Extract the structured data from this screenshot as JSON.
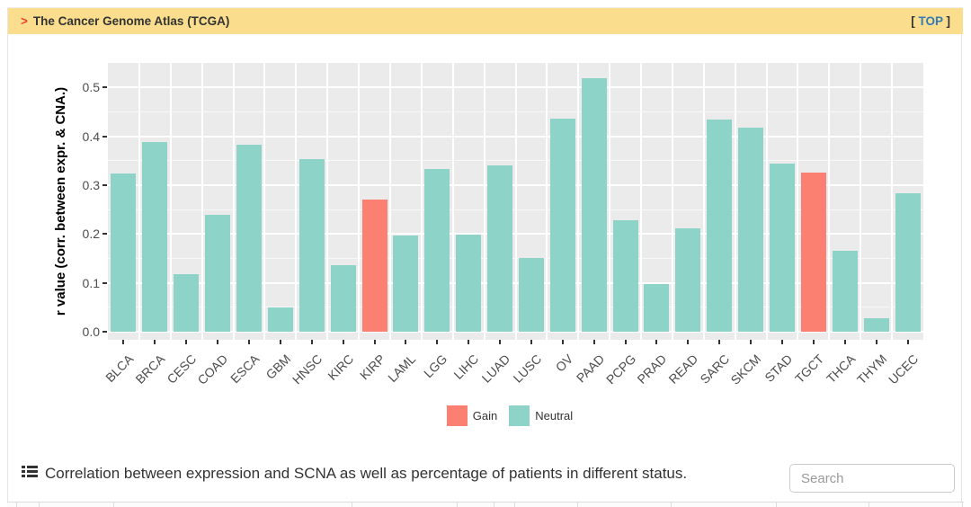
{
  "header": {
    "arrow": ">",
    "title": "The Cancer Genome Atlas (TCGA)",
    "top": {
      "prefix": "[ ",
      "label": "TOP",
      "suffix": " ]"
    }
  },
  "chart_data": {
    "type": "bar",
    "title": "",
    "xlabel": "",
    "ylabel": "r value (corr. between expr. & CNA.)",
    "ylim": [
      0,
      0.55
    ],
    "yticks": [
      "0.0",
      "0.1",
      "0.2",
      "0.3",
      "0.4",
      "0.5"
    ],
    "grid": true,
    "legend_position": "bottom",
    "panel_bg": "#EBEBEB",
    "categories": [
      "BLCA",
      "BRCA",
      "CESC",
      "COAD",
      "ESCA",
      "GBM",
      "HNSC",
      "KIRC",
      "KIRP",
      "LAML",
      "LGG",
      "LIHC",
      "LUAD",
      "LUSC",
      "OV",
      "PAAD",
      "PCPG",
      "PRAD",
      "READ",
      "SARC",
      "SKCM",
      "STAD",
      "TGCT",
      "THCA",
      "THYM",
      "UCEC"
    ],
    "values": [
      0.324,
      0.388,
      0.118,
      0.239,
      0.383,
      0.049,
      0.353,
      0.137,
      0.271,
      0.196,
      0.334,
      0.198,
      0.34,
      0.151,
      0.436,
      0.519,
      0.228,
      0.098,
      0.211,
      0.434,
      0.418,
      0.344,
      0.326,
      0.166,
      0.027,
      0.284
    ],
    "status": [
      "Neutral",
      "Neutral",
      "Neutral",
      "Neutral",
      "Neutral",
      "Neutral",
      "Neutral",
      "Neutral",
      "Gain",
      "Neutral",
      "Neutral",
      "Neutral",
      "Neutral",
      "Neutral",
      "Neutral",
      "Neutral",
      "Neutral",
      "Neutral",
      "Neutral",
      "Neutral",
      "Neutral",
      "Neutral",
      "Gain",
      "Neutral",
      "Neutral",
      "Neutral"
    ],
    "legend": [
      {
        "label": "Gain",
        "color": "#FB8072"
      },
      {
        "label": "Neutral",
        "color": "#8DD3C7"
      }
    ]
  },
  "caption": {
    "icon": "list-icon",
    "text": "Correlation between expression and SCNA as well as percentage of patients in different status."
  },
  "search": {
    "placeholder": "Search"
  },
  "colors": {
    "header_bg": "#FADE8D",
    "header_arrow": "#e8432d",
    "top_link": "#337ab7",
    "gain": "#FB8072",
    "neutral": "#8DD3C7",
    "panel_bg": "#EBEBEB",
    "axis_text": "#4d4d4d"
  }
}
